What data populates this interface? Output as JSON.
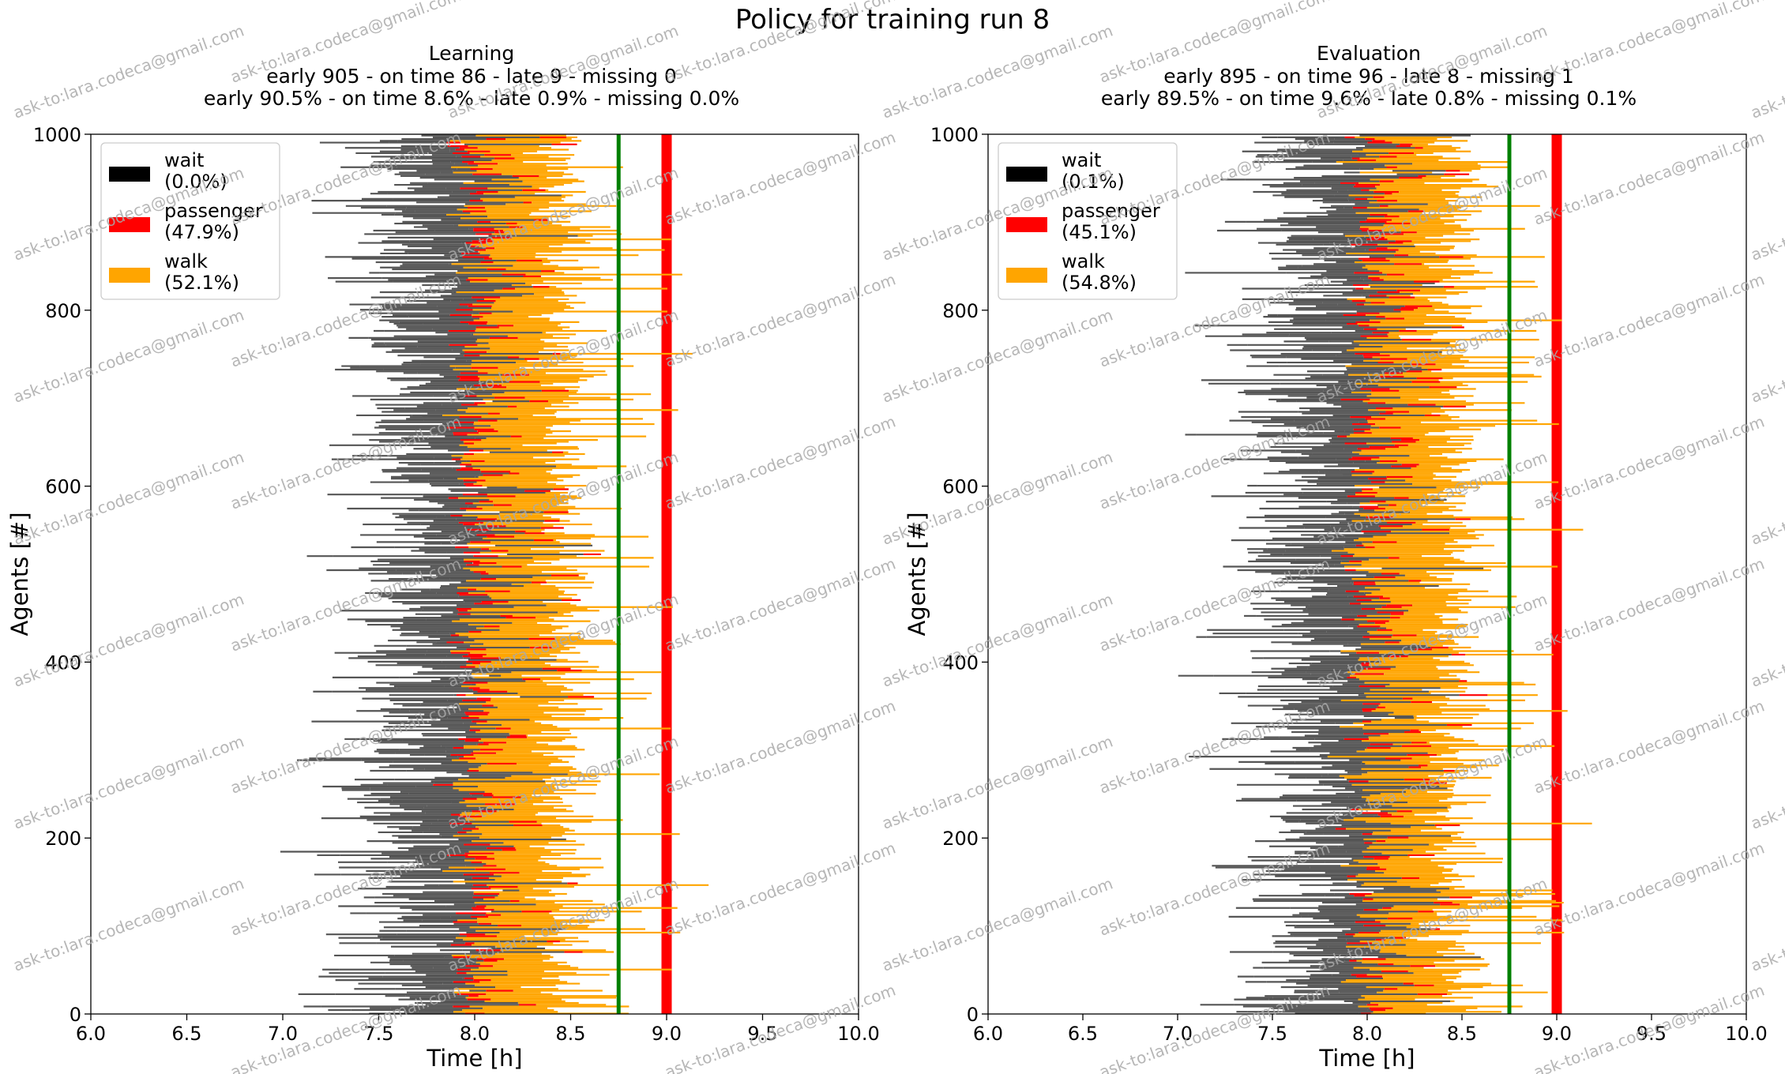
{
  "figure_title": "Policy for training run 8",
  "watermark_text": "ask-to:lara.codeca@gmail.com",
  "chart_data": [
    {
      "type": "gantt",
      "title": "Learning",
      "subtitle_counts": "early 905 - on time 86 - late 9 - missing 0",
      "subtitle_percents": "early 90.5% - on time 8.6% - late 0.9% - missing 0.0%",
      "xlabel": "Time [h]",
      "ylabel": "Agents [#]",
      "xlim": [
        6.0,
        10.0
      ],
      "ylim": [
        0,
        1000
      ],
      "xticks": [
        "6.0",
        "6.5",
        "7.0",
        "7.5",
        "8.0",
        "8.5",
        "9.0",
        "9.5",
        "10.0"
      ],
      "yticks": [
        "0",
        "200",
        "400",
        "600",
        "800",
        "1000"
      ],
      "early_line_hour": 8.75,
      "deadline_hour": 9.0,
      "legend": [
        {
          "label": "wait",
          "pct": "(0.0%)",
          "color": "#000000"
        },
        {
          "label": "passenger",
          "pct": "(47.9%)",
          "color": "#ff0000"
        },
        {
          "label": "walk",
          "pct": "(52.1%)",
          "color": "#ffa500"
        }
      ],
      "seed": 8
    },
    {
      "type": "gantt",
      "title": "Evaluation",
      "subtitle_counts": "early 895 - on time 96 - late 8 - missing 1",
      "subtitle_percents": "early 89.5% - on time 9.6% - late 0.8% - missing 0.1%",
      "xlabel": "Time [h]",
      "ylabel": "Agents [#]",
      "xlim": [
        6.0,
        10.0
      ],
      "ylim": [
        0,
        1000
      ],
      "xticks": [
        "6.0",
        "6.5",
        "7.0",
        "7.5",
        "8.0",
        "8.5",
        "9.0",
        "9.5",
        "10.0"
      ],
      "yticks": [
        "0",
        "200",
        "400",
        "600",
        "800",
        "1000"
      ],
      "early_line_hour": 8.75,
      "deadline_hour": 9.0,
      "legend": [
        {
          "label": "wait",
          "pct": "(0.1%)",
          "color": "#000000"
        },
        {
          "label": "passenger",
          "pct": "(45.1%)",
          "color": "#ff0000"
        },
        {
          "label": "walk",
          "pct": "(54.8%)",
          "color": "#ffa500"
        }
      ],
      "seed": 88
    }
  ],
  "colors": {
    "wait": "#555555",
    "passenger": "#ff0000",
    "walk": "#ffa500",
    "early_line": "#008000",
    "deadline": "#ff0000",
    "watermark": "#a9a9a9"
  }
}
